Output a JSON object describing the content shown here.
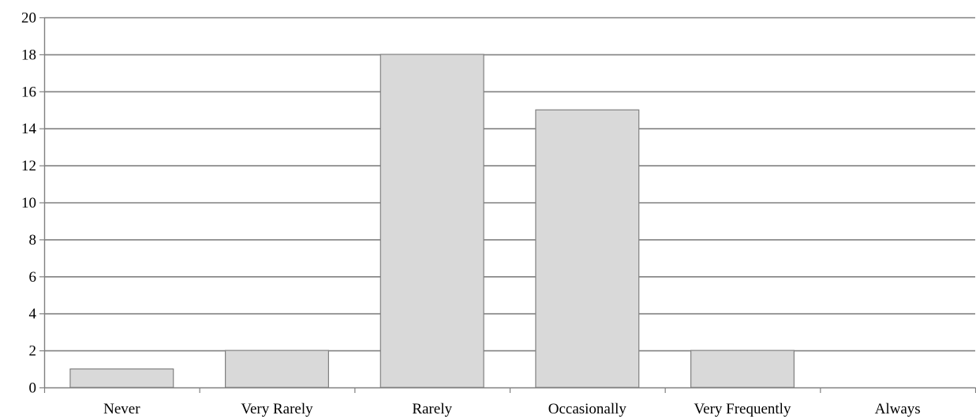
{
  "chart_data": {
    "type": "bar",
    "categories": [
      "Never",
      "Very Rarely",
      "Rarely",
      "Occasionally",
      "Very Frequently",
      "Always"
    ],
    "values": [
      1,
      2,
      18,
      15,
      2,
      0
    ],
    "ylim": [
      0,
      20
    ],
    "yticks": [
      0,
      2,
      4,
      6,
      8,
      10,
      12,
      14,
      16,
      18,
      20
    ],
    "grid": true,
    "legend": "none",
    "colors": {
      "bar_fill": "#d9d9d9",
      "bar_stroke": "#808080",
      "grid": "#808080",
      "axis": "#808080"
    }
  }
}
